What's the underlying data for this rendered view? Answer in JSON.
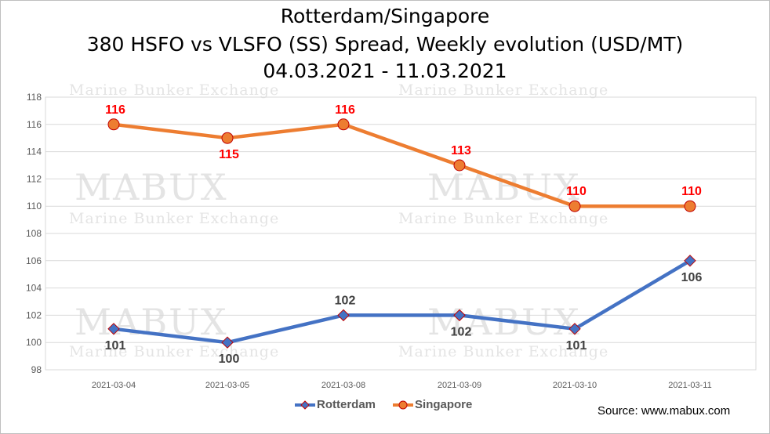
{
  "title_lines": [
    "Rotterdam/Singapore",
    "380 HSFO vs VLSFO (SS) Spread, Weekly evolution (USD/MT)",
    "04.03.2021 - 11.03.2021"
  ],
  "watermark": {
    "big": "MABUX",
    "small": "Marine Bunker Exchange"
  },
  "source": "Source: www.mabux.com",
  "colors": {
    "rotterdam": "#4472C4",
    "singapore": "#ED7D31",
    "marker_edge": "#C00000",
    "label_red": "#FF0000",
    "label_gray": "#404040"
  },
  "chart_data": {
    "type": "line",
    "title": "Rotterdam/Singapore 380 HSFO vs VLSFO (SS) Spread, Weekly evolution (USD/MT) 04.03.2021 - 11.03.2021",
    "xlabel": "",
    "ylabel": "",
    "categories": [
      "2021-03-04",
      "2021-03-05",
      "2021-03-08",
      "2021-03-09",
      "2021-03-10",
      "2021-03-11"
    ],
    "ylim": [
      98,
      118
    ],
    "yticks": [
      "98",
      "100",
      "102",
      "104",
      "106",
      "108",
      "110",
      "112",
      "114",
      "116",
      "118"
    ],
    "grid": true,
    "legend_position": "bottom",
    "series": [
      {
        "name": "Rotterdam",
        "values": [
          101,
          100,
          102,
          102,
          101,
          106
        ],
        "labels": [
          "101",
          "100",
          "102",
          "102",
          "101",
          "106"
        ]
      },
      {
        "name": "Singapore",
        "values": [
          116,
          115,
          116,
          113,
          110,
          110
        ],
        "labels": [
          "116",
          "115",
          "116",
          "113",
          "110",
          "110"
        ]
      }
    ]
  }
}
